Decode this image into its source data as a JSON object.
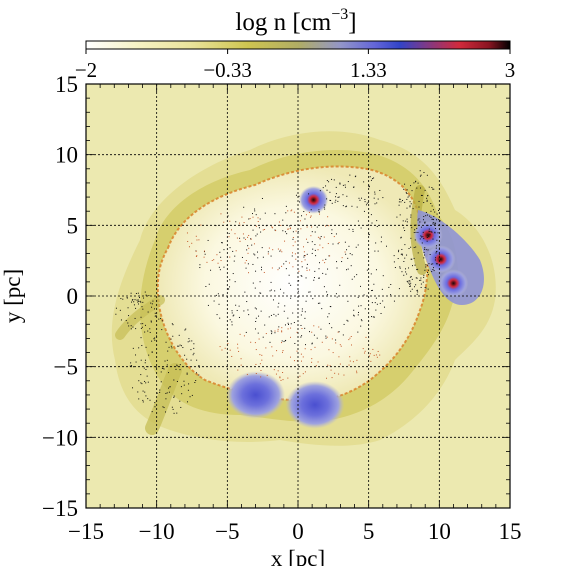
{
  "chart_data": {
    "type": "heatmap",
    "title": "",
    "xlabel": "x [pc]",
    "ylabel": "y [pc]",
    "xlim": [
      -15,
      15
    ],
    "ylim": [
      -15,
      15
    ],
    "grid": true,
    "x_ticks": [
      "−15",
      "−10",
      "−5",
      "0",
      "5",
      "10",
      "15"
    ],
    "y_ticks": [
      "15",
      "10",
      "5",
      "0",
      "−5",
      "−10",
      "−15"
    ],
    "colorbar": {
      "label_base": "log n [cm",
      "label_exp": "−3",
      "label_close": "]",
      "range": [
        -2,
        3
      ],
      "tick_values": [
        -2,
        -0.33,
        1.33,
        3
      ],
      "tick_labels": [
        "−2",
        "−0.33",
        "1.33",
        "3"
      ],
      "colors": [
        "#ffffff",
        "#f7f3c5",
        "#e6df8a",
        "#c9bf4a",
        "#a9a860",
        "#8a8ec9",
        "#5a5ad8",
        "#2b3bd8",
        "#c72f4a",
        "#e0283a",
        "#000000"
      ]
    },
    "dense_clumps": [
      {
        "x": 1.1,
        "y": 6.8,
        "peak": 2.9
      },
      {
        "x": 9.2,
        "y": 4.3,
        "peak": 2.9
      },
      {
        "x": 10.1,
        "y": 2.6,
        "peak": 2.9
      },
      {
        "x": 11.0,
        "y": 0.9,
        "peak": 2.9
      },
      {
        "x": -3.0,
        "y": -7.0,
        "peak": 1.5
      },
      {
        "x": 1.2,
        "y": -7.7,
        "peak": 1.5
      }
    ],
    "background_density": 0.0
  },
  "colors": {
    "background_field": "#ece9b0",
    "shell": "#d6cf7a",
    "cavity": "#fffdf3",
    "rim": "#d9822a",
    "stars": "#111111"
  }
}
